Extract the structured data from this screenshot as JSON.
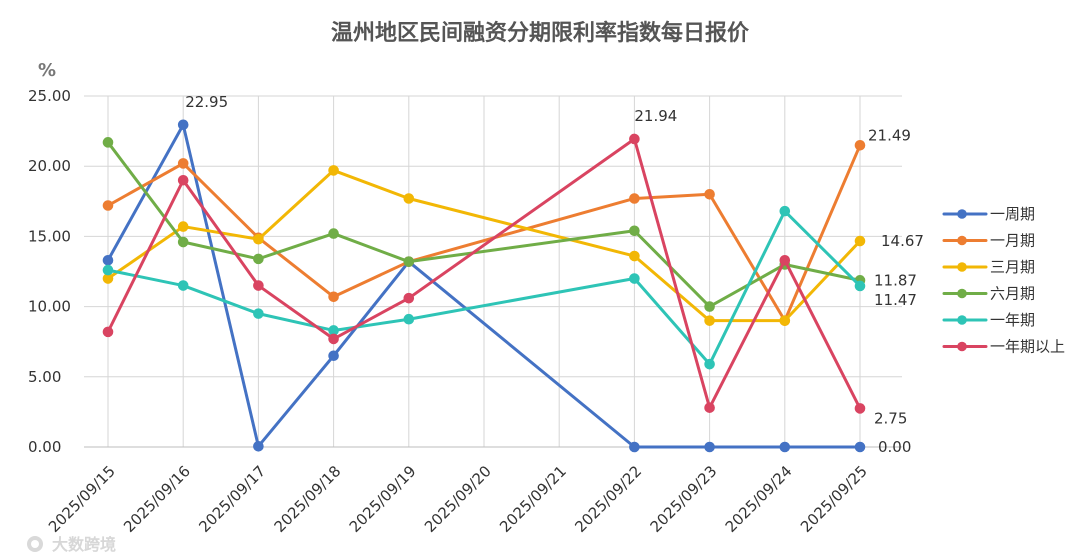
{
  "chart_data": {
    "type": "line",
    "title": "温州地区民间融资分期限利率指数每日报价",
    "unit_label": "%",
    "categories": [
      "2025/09/15",
      "2025/09/16",
      "2025/09/17",
      "2025/09/18",
      "2025/09/19",
      "2025/09/20",
      "2025/09/21",
      "2025/09/22",
      "2025/09/23",
      "2025/09/24",
      "2025/09/25"
    ],
    "ylim": [
      0,
      25
    ],
    "yticks": [
      0,
      5,
      10,
      15,
      20,
      25
    ],
    "ytick_labels": [
      "0.00",
      "5.00",
      "10.00",
      "15.00",
      "20.00",
      "25.00"
    ],
    "grid": true,
    "legend_position": "right",
    "series": [
      {
        "name": "一周期",
        "color": "#4472c4",
        "values": [
          13.3,
          22.95,
          0.05,
          6.5,
          13.2,
          null,
          null,
          0.0,
          0.0,
          0.0,
          0.0
        ]
      },
      {
        "name": "一月期",
        "color": "#ed7d31",
        "values": [
          17.2,
          20.2,
          14.9,
          10.7,
          13.2,
          null,
          null,
          17.7,
          18.0,
          9.0,
          21.49
        ]
      },
      {
        "name": "三月期",
        "color": "#f2b705",
        "values": [
          12.0,
          15.7,
          14.8,
          19.7,
          17.7,
          null,
          null,
          13.6,
          9.0,
          9.0,
          14.67
        ]
      },
      {
        "name": "六月期",
        "color": "#70ad47",
        "values": [
          21.7,
          14.6,
          13.4,
          15.2,
          13.2,
          null,
          null,
          15.4,
          10.0,
          13.0,
          11.87
        ]
      },
      {
        "name": "一年期",
        "color": "#2ec4b6",
        "values": [
          12.6,
          11.5,
          9.5,
          8.3,
          9.1,
          null,
          null,
          12.0,
          5.9,
          16.8,
          11.47
        ]
      },
      {
        "name": "一年期以上",
        "color": "#d94461",
        "values": [
          8.2,
          19.0,
          11.5,
          7.7,
          10.6,
          null,
          null,
          21.94,
          2.8,
          13.3,
          2.75
        ]
      }
    ],
    "data_labels": [
      {
        "series": "一周期",
        "index": 1,
        "text": "22.95"
      },
      {
        "series": "一周期",
        "index": 10,
        "text": "0.00"
      },
      {
        "series": "一月期",
        "index": 10,
        "text": "21.49"
      },
      {
        "series": "三月期",
        "index": 10,
        "text": "14.67"
      },
      {
        "series": "六月期",
        "index": 10,
        "text": "11.87"
      },
      {
        "series": "一年期",
        "index": 10,
        "text": "11.47"
      },
      {
        "series": "一年期以上",
        "index": 7,
        "text": "21.94"
      },
      {
        "series": "一年期以上",
        "index": 10,
        "text": "2.75"
      }
    ]
  },
  "watermark": {
    "text": "大数跨境"
  }
}
